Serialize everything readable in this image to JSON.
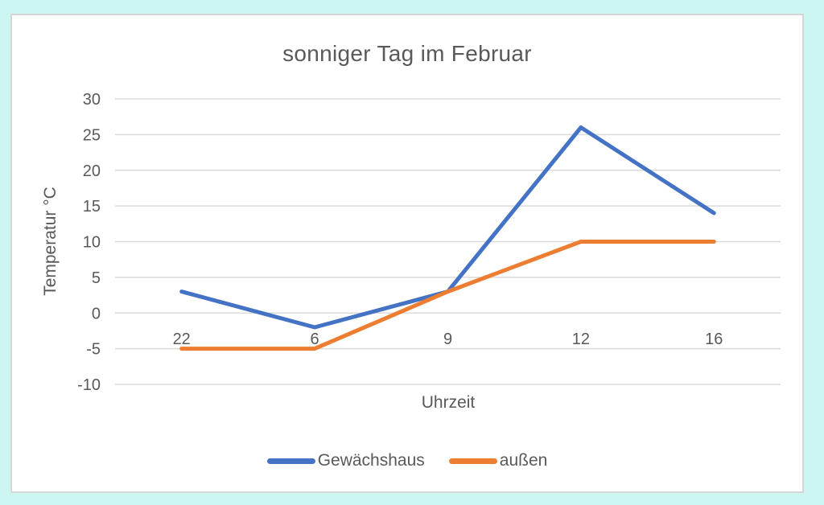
{
  "page": {
    "background_color": "#cdf6f1",
    "chart_background_color": "#ffffff",
    "chart_border_color": "#d6d6d6"
  },
  "chart_data": {
    "type": "line",
    "title": "sonniger Tag im Februar",
    "xlabel": "Uhrzeit",
    "ylabel": "Temperatur °C",
    "categories": [
      "22",
      "6",
      "9",
      "12",
      "16"
    ],
    "series": [
      {
        "name": "Gewächshaus",
        "color": "#4472C4",
        "values": [
          3,
          -2,
          3,
          26,
          14
        ]
      },
      {
        "name": "außen",
        "color": "#ED7D31",
        "values": [
          -5,
          -5,
          3,
          10,
          10
        ]
      }
    ],
    "ylim": [
      -10,
      30
    ],
    "ytick_step": 5,
    "yticks": [
      30,
      25,
      20,
      15,
      10,
      5,
      0,
      -5,
      -10
    ],
    "grid": true,
    "legend_position": "bottom",
    "text_color": "#595959",
    "gridline_color": "#dbdbdb",
    "line_width": 5
  }
}
